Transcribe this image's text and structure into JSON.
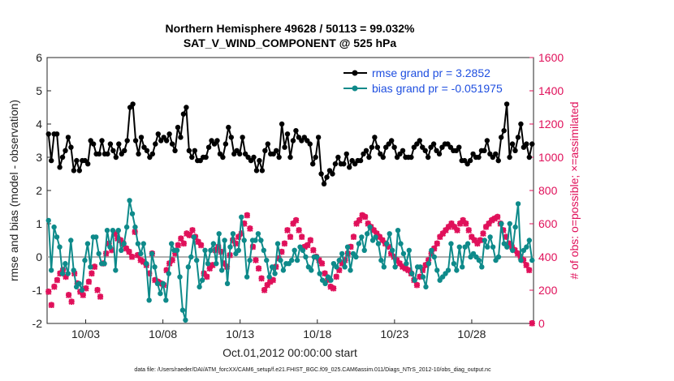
{
  "chart_data": {
    "type": "line",
    "title_line1": "Northern Hemisphere 49628 / 50113 = 99.032%",
    "title_line2": "SAT_V_WIND_COMPONENT @ 525 hPa",
    "xlabel": "Oct.01,2012 00:00:00 start",
    "ylabel_left": "rmse and bias (model - observation)",
    "ylabel_right": "# of obs: o=possible; ×=assimilated",
    "footnote": "data file: /Users/raeder/DAI/ATM_forcXX/CAM6_setup/f.e21.FHIST_BGC.f09_025.CAM6assim.011/Diags_NTrS_2012-10/obs_diag_output.nc",
    "xlim": [
      0.5,
      32
    ],
    "ylim_left": [
      -2,
      6
    ],
    "ylim_right": [
      0,
      1600
    ],
    "x_ticks": [
      3,
      8,
      13,
      18,
      23,
      28
    ],
    "x_tick_labels": [
      "10/03",
      "10/08",
      "10/13",
      "10/18",
      "10/23",
      "10/28"
    ],
    "y_left_ticks": [
      "-2",
      "-1",
      "0",
      "1",
      "2",
      "3",
      "4",
      "5",
      "6"
    ],
    "y_right_ticks": [
      "0",
      "200",
      "400",
      "600",
      "800",
      "1000",
      "1200",
      "1400",
      "1600"
    ],
    "zero_line": 0,
    "colors": {
      "rmse": "#000000",
      "bias": "#0e8a8a",
      "obs": "#e0105a",
      "zero": "#b0b0b0",
      "legend_text": "#1f4fe0"
    },
    "legend": [
      {
        "name": "rmse grand pr = 3.2852",
        "series": "rmse"
      },
      {
        "name": "bias grand pr = -0.051975",
        "series": "bias"
      }
    ],
    "series": [
      {
        "name": "rmse",
        "values": [
          3.7,
          2.9,
          3.7,
          3.7,
          2.7,
          3.0,
          3.2,
          3.6,
          3.3,
          2.6,
          2.9,
          2.6,
          2.9,
          2.9,
          2.8,
          3.5,
          3.4,
          3.1,
          3.1,
          3.5,
          3.1,
          3.1,
          3.4,
          3.2,
          3.0,
          3.4,
          3.1,
          3.2,
          3.5,
          4.5,
          4.6,
          3.5,
          3.1,
          3.6,
          3.3,
          3.2,
          3.0,
          3.1,
          3.4,
          3.7,
          3.5,
          3.6,
          3.5,
          3.7,
          3.4,
          3.2,
          3.9,
          3.6,
          4.3,
          4.5,
          3.2,
          3.0,
          3.2,
          2.9,
          2.9,
          3.0,
          3.0,
          3.3,
          3.5,
          3.4,
          3.5,
          3.1,
          3.0,
          3.4,
          3.9,
          3.6,
          3.1,
          3.2,
          3.1,
          3.6,
          3.1,
          3.0,
          2.9,
          3.0,
          2.6,
          2.9,
          2.6,
          3.2,
          3.4,
          3.1,
          3.1,
          3.2,
          3.0,
          4.0,
          3.3,
          3.7,
          3.0,
          3.5,
          3.8,
          3.6,
          3.5,
          3.6,
          3.5,
          3.4,
          2.8,
          3.0,
          3.6,
          2.5,
          2.2,
          2.4,
          2.6,
          2.5,
          2.8,
          3.0,
          2.8,
          2.8,
          3.1,
          2.7,
          2.9,
          2.8,
          2.9,
          2.9,
          3.1,
          3.2,
          3.0,
          3.3,
          3.6,
          3.3,
          3.1,
          3.0,
          3.3,
          3.4,
          3.5,
          3.3,
          3.0,
          3.1,
          3.2,
          3.0,
          3.0,
          3.0,
          3.3,
          3.4,
          3.5,
          3.3,
          3.2,
          3.0,
          3.3,
          3.4,
          3.2,
          3.1,
          3.3,
          3.4,
          3.4,
          3.3,
          3.2,
          3.2,
          3.3,
          2.9,
          2.9,
          2.8,
          2.9,
          3.1,
          3.0,
          3.0,
          3.2,
          3.2,
          3.5,
          3.1,
          3.0,
          3.1,
          2.9,
          3.6,
          3.8,
          4.6,
          3.0,
          3.4,
          3.2,
          3.6,
          4.0,
          3.3,
          3.4,
          3.0,
          3.4
        ]
      },
      {
        "name": "bias",
        "values": [
          1.1,
          -0.4,
          0.9,
          0.6,
          0.3,
          -0.5,
          -0.2,
          -0.5,
          0.5,
          -0.4,
          -0.9,
          -0.8,
          -1.0,
          -0.1,
          0.4,
          -0.3,
          0.6,
          0.6,
          0.1,
          -0.2,
          -0.2,
          0.8,
          0.3,
          0.8,
          -0.4,
          0.8,
          0.2,
          0.4,
          0.9,
          1.7,
          1.3,
          0.9,
          0.4,
          0.1,
          0.4,
          -0.2,
          -1.3,
          0.1,
          -0.3,
          -0.8,
          -1.1,
          -0.8,
          -1.3,
          -0.5,
          0.4,
          0.2,
          0.2,
          -0.6,
          -1.6,
          -1.9,
          -0.3,
          0.0,
          0.6,
          -0.1,
          -0.9,
          -0.7,
          0.2,
          -0.2,
          0.2,
          0.4,
          -0.2,
          0.7,
          -0.4,
          0.5,
          -0.8,
          0.3,
          0.7,
          0.1,
          0.2,
          1.2,
          0.5,
          -0.6,
          -0.1,
          0.5,
          0.5,
          0.7,
          0.5,
          0.2,
          -0.1,
          -0.6,
          -0.3,
          -0.5,
          0.4,
          -0.1,
          -0.4,
          -0.2,
          -0.2,
          -0.1,
          0.2,
          -0.1,
          0.3,
          0.2,
          0.0,
          -0.3,
          -0.4,
          0.0,
          0.0,
          -0.5,
          -0.7,
          -0.8,
          -0.6,
          -0.7,
          -0.2,
          -0.3,
          -0.1,
          0.1,
          -0.3,
          0.3,
          -0.4,
          0.1,
          0.0,
          0.4,
          0.6,
          0.2,
          0.7,
          0.9,
          0.5,
          0.6,
          0.4,
          -0.1,
          -0.3,
          0.4,
          0.7,
          0.2,
          -0.3,
          0.8,
          0.4,
          0.1,
          -0.2,
          0.2,
          -0.5,
          -0.7,
          -0.3,
          -0.3,
          -0.6,
          -0.9,
          -0.2,
          0.2,
          0.0,
          -0.4,
          -0.7,
          -0.6,
          -0.5,
          -0.4,
          0.4,
          -0.2,
          -0.4,
          0.3,
          -0.3,
          0.3,
          0.4,
          0.0,
          0.1,
          0.0,
          -0.1,
          -0.3,
          0.5,
          0.3,
          0.6,
          0.3,
          -0.1,
          0.0,
          1.0,
          0.4,
          0.3,
          1.0,
          0.2,
          0.9,
          1.6,
          -0.1,
          0.2,
          0.3,
          0.5,
          -0.1
        ]
      },
      {
        "name": "obs_assimilated",
        "values": [
          190,
          110,
          220,
          260,
          300,
          320,
          280,
          170,
          130,
          300,
          240,
          190,
          170,
          210,
          250,
          300,
          340,
          200,
          160,
          360,
          420,
          480,
          440,
          540,
          510,
          500,
          480,
          450,
          430,
          400,
          550,
          410,
          380,
          370,
          350,
          300,
          420,
          260,
          250,
          240,
          230,
          320,
          360,
          380,
          420,
          470,
          510,
          480,
          540,
          530,
          560,
          520,
          490,
          470,
          300,
          280,
          330,
          350,
          440,
          460,
          430,
          360,
          340,
          410,
          500,
          480,
          520,
          540,
          600,
          650,
          570,
          460,
          380,
          330,
          270,
          200,
          230,
          250,
          260,
          340,
          390,
          430,
          480,
          560,
          520,
          600,
          620,
          560,
          520,
          460,
          470,
          500,
          440,
          400,
          380,
          360,
          300,
          260,
          220,
          210,
          280,
          320,
          360,
          380,
          420,
          460,
          520,
          600,
          620,
          650,
          640,
          600,
          580,
          560,
          540,
          520,
          500,
          480,
          460,
          420,
          400,
          380,
          360,
          340,
          330,
          320,
          300,
          260,
          230,
          280,
          320,
          350,
          380,
          420,
          450,
          480,
          520,
          540,
          560,
          580,
          600,
          580,
          560,
          600,
          620,
          600,
          560,
          520,
          500,
          480,
          500,
          540,
          580,
          600,
          620,
          630,
          640,
          600,
          560,
          520,
          480,
          460,
          440,
          420,
          400,
          380,
          350,
          320,
          0
        ]
      },
      {
        "name": "obs_possible",
        "values": [
          194,
          114,
          224,
          264,
          304,
          324,
          284,
          174,
          134,
          304,
          244,
          194,
          174,
          214,
          254,
          304,
          344,
          204,
          164,
          364,
          424,
          484,
          444,
          544,
          514,
          504,
          484,
          454,
          434,
          404,
          554,
          414,
          384,
          374,
          354,
          304,
          424,
          264,
          254,
          244,
          234,
          324,
          364,
          384,
          424,
          474,
          514,
          484,
          544,
          534,
          564,
          524,
          494,
          474,
          304,
          284,
          334,
          354,
          444,
          464,
          434,
          364,
          344,
          414,
          504,
          484,
          524,
          544,
          604,
          654,
          574,
          464,
          384,
          334,
          274,
          204,
          234,
          254,
          264,
          344,
          394,
          434,
          484,
          564,
          524,
          604,
          624,
          564,
          524,
          464,
          474,
          504,
          444,
          404,
          384,
          364,
          304,
          264,
          224,
          214,
          284,
          324,
          364,
          384,
          424,
          464,
          524,
          604,
          624,
          654,
          644,
          604,
          584,
          564,
          544,
          524,
          504,
          484,
          464,
          424,
          404,
          384,
          364,
          344,
          334,
          324,
          304,
          264,
          234,
          284,
          324,
          354,
          384,
          424,
          454,
          484,
          524,
          544,
          564,
          584,
          604,
          584,
          564,
          604,
          624,
          604,
          564,
          524,
          504,
          484,
          504,
          544,
          584,
          604,
          624,
          634,
          644,
          604,
          564,
          524,
          484,
          464,
          444,
          424,
          404,
          384,
          354,
          324,
          4
        ]
      }
    ]
  }
}
